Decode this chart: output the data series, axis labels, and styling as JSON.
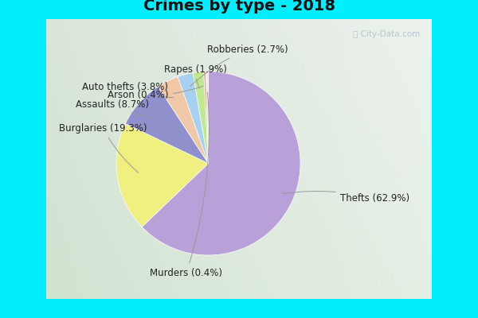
{
  "title": "Crimes by type - 2018",
  "title_fontsize": 14,
  "labels": [
    "Thefts",
    "Burglaries",
    "Assaults",
    "Auto thefts",
    "Robberies",
    "Rapes",
    "Arson",
    "Murders"
  ],
  "pct_labels": [
    "Thefts (62.9%)",
    "Burglaries (19.3%)",
    "Assaults (8.7%)",
    "Auto thefts (3.8%)",
    "Robberies (2.7%)",
    "Rapes (1.9%)",
    "Arson (0.4%)",
    "Murders (0.4%)"
  ],
  "values": [
    62.9,
    19.3,
    8.7,
    3.8,
    2.7,
    1.9,
    0.4,
    0.4
  ],
  "colors": [
    "#B8A0D8",
    "#F0F080",
    "#9090CC",
    "#F0C8A8",
    "#A8D0F0",
    "#C0E890",
    "#F0A0A0",
    "#E0F0D0"
  ],
  "border_color": "#00EEFF",
  "bg_color_inner": "#E8F5E8",
  "label_fontsize": 8.5,
  "startangle": 90,
  "watermark": "City-Data.com"
}
